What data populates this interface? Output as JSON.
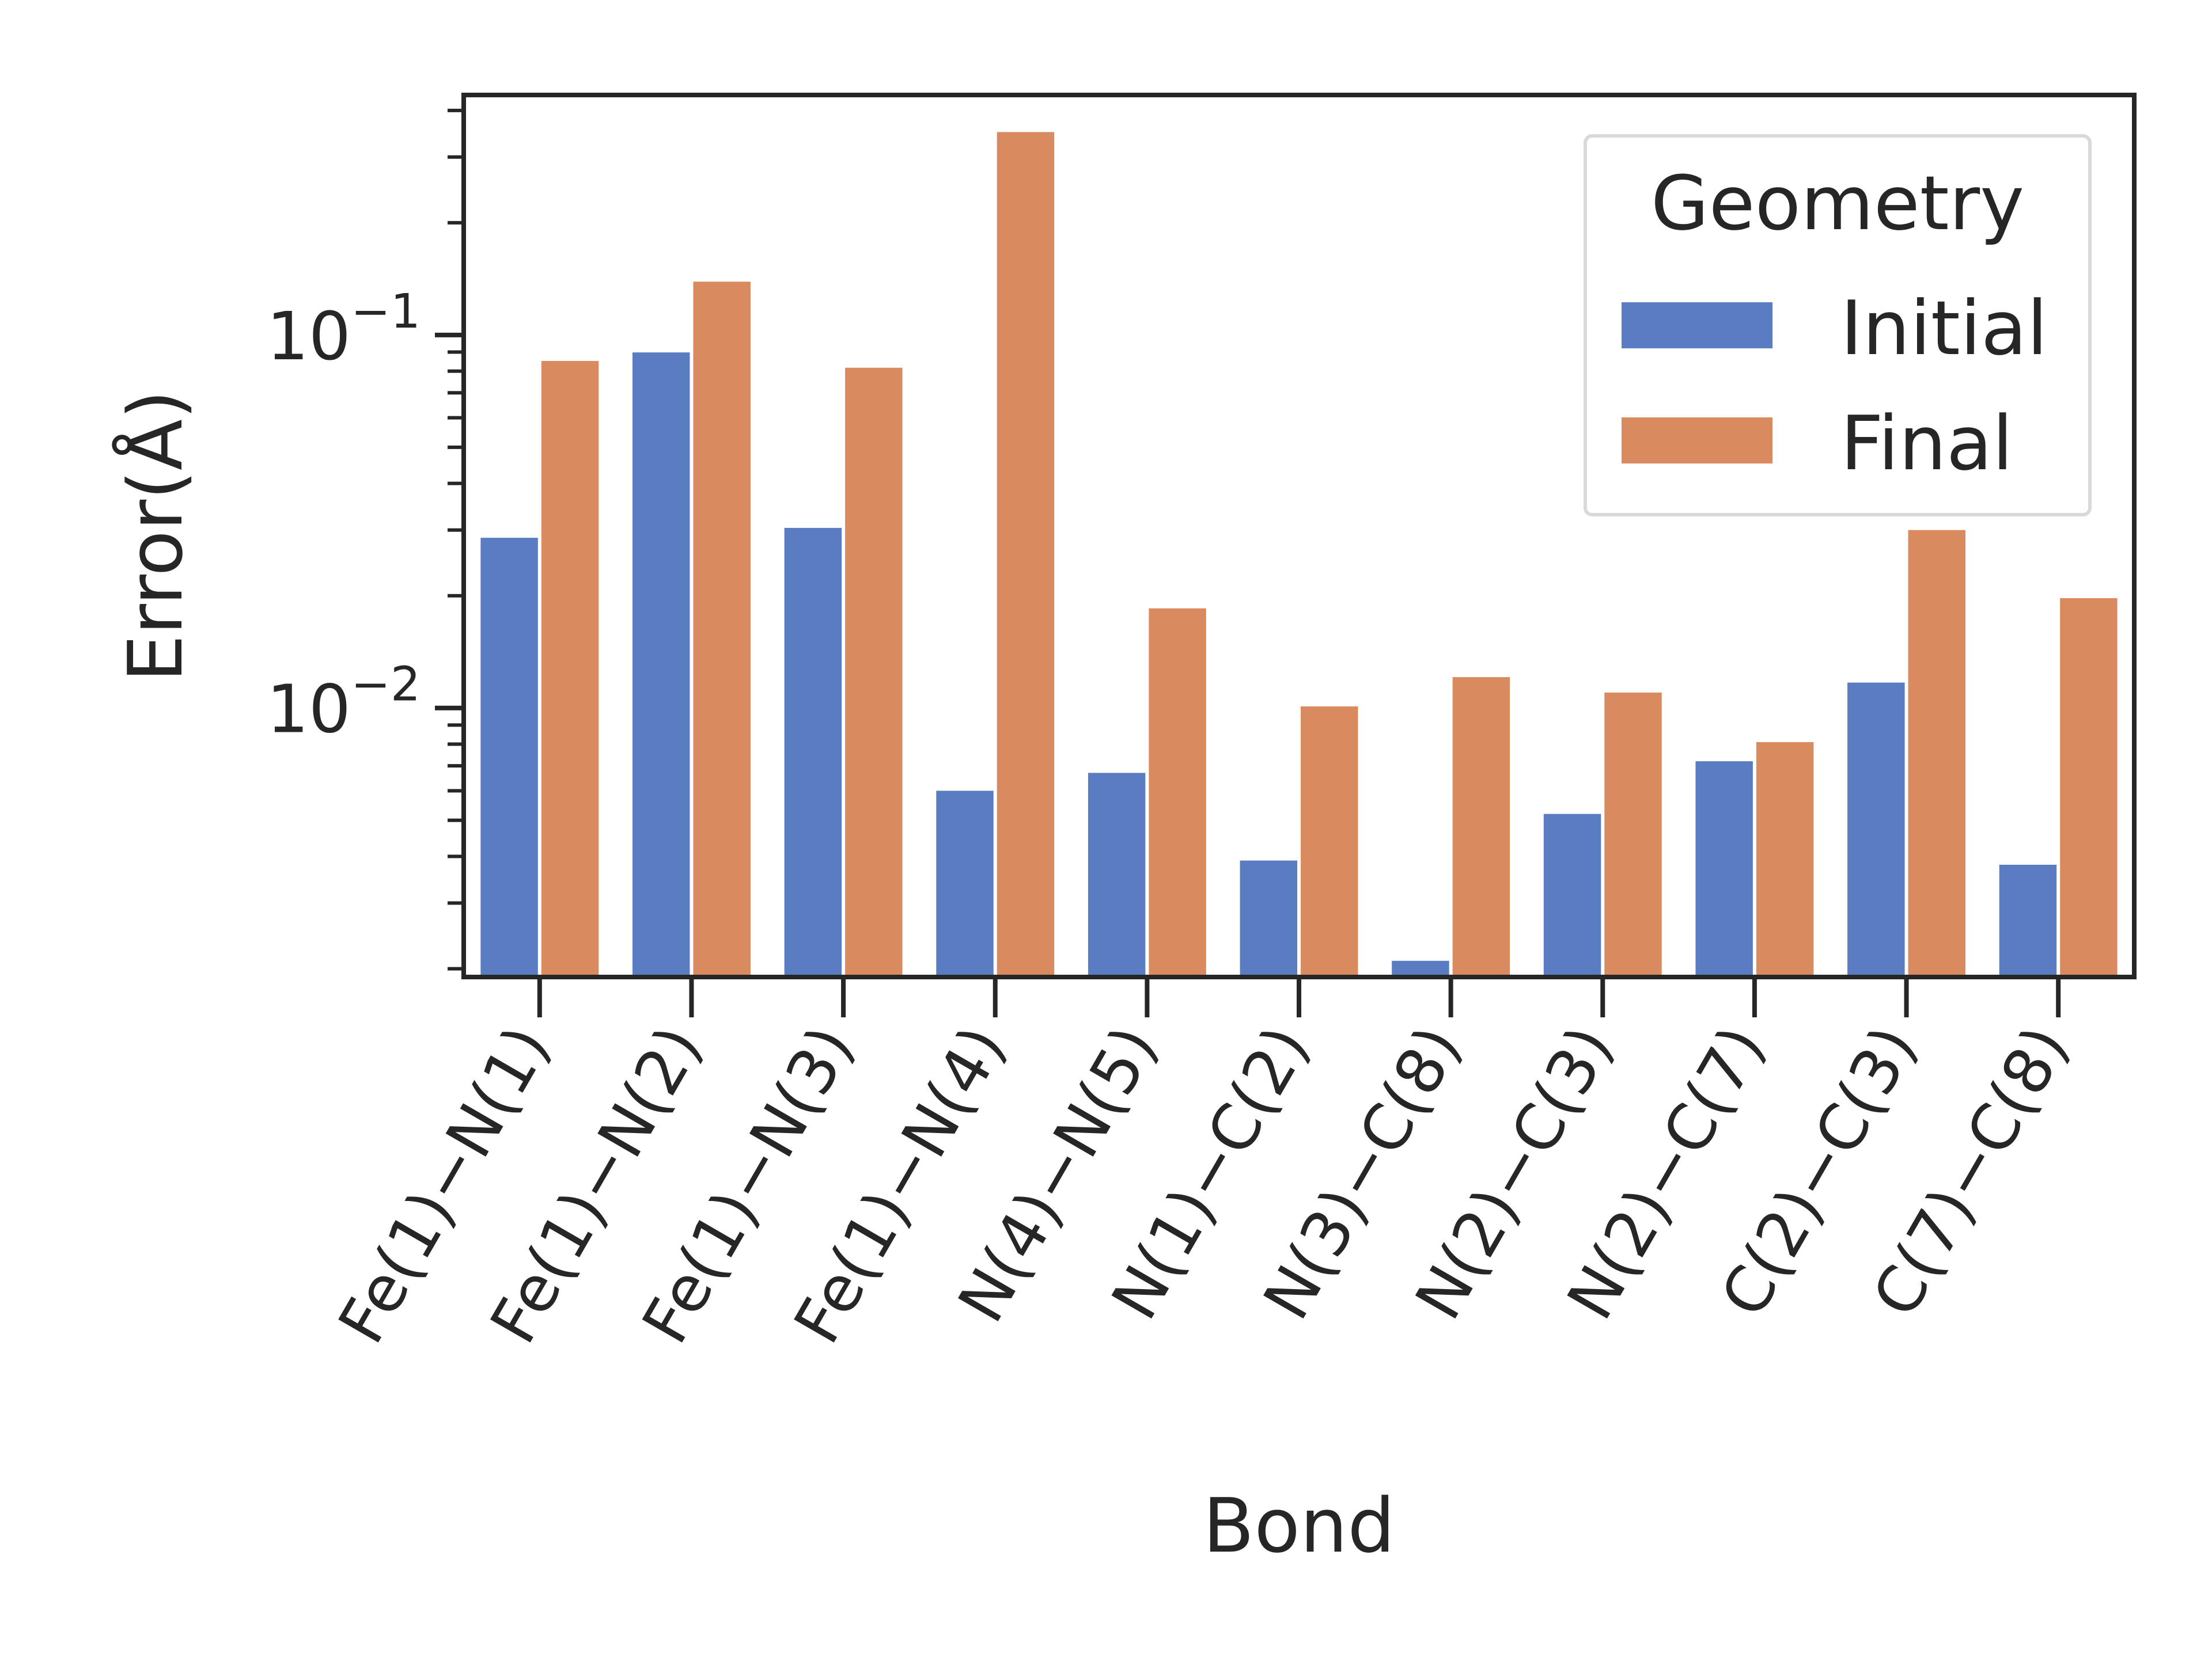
{
  "chart_data": {
    "type": "bar",
    "xlabel": "Bond",
    "ylabel": "Error(Å)",
    "yscale": "log",
    "ylim": [
      0.0019,
      0.44
    ],
    "yticks_major": [
      {
        "value": 0.1,
        "base": "10",
        "exp": "−1"
      },
      {
        "value": 0.01,
        "base": "10",
        "exp": "−2"
      }
    ],
    "grid": false,
    "legend_position": "top-right",
    "legend_title": "Geometry",
    "categories": [
      "Fe(1)−N(1)",
      "Fe(1)−N(2)",
      "Fe(1)−N(3)",
      "Fe(1)−N(4)",
      "N(4)−N(5)",
      "N(1)−C(2)",
      "N(3)−C(8)",
      "N(2)−C(3)",
      "N(2)−C(7)",
      "C(2)−C(3)",
      "C(7)−C(8)"
    ],
    "series": [
      {
        "name": "Initial",
        "color": "#5a7dc2",
        "values": [
          0.0286,
          0.0898,
          0.0304,
          0.006,
          0.0067,
          0.0039,
          0.0021,
          0.0052,
          0.0072,
          0.0117,
          0.0038
        ]
      },
      {
        "name": "Final",
        "color": "#d98b5f",
        "values": [
          0.0852,
          0.139,
          0.0817,
          0.35,
          0.0185,
          0.0101,
          0.0121,
          0.011,
          0.0081,
          0.03,
          0.0197
        ]
      }
    ]
  }
}
